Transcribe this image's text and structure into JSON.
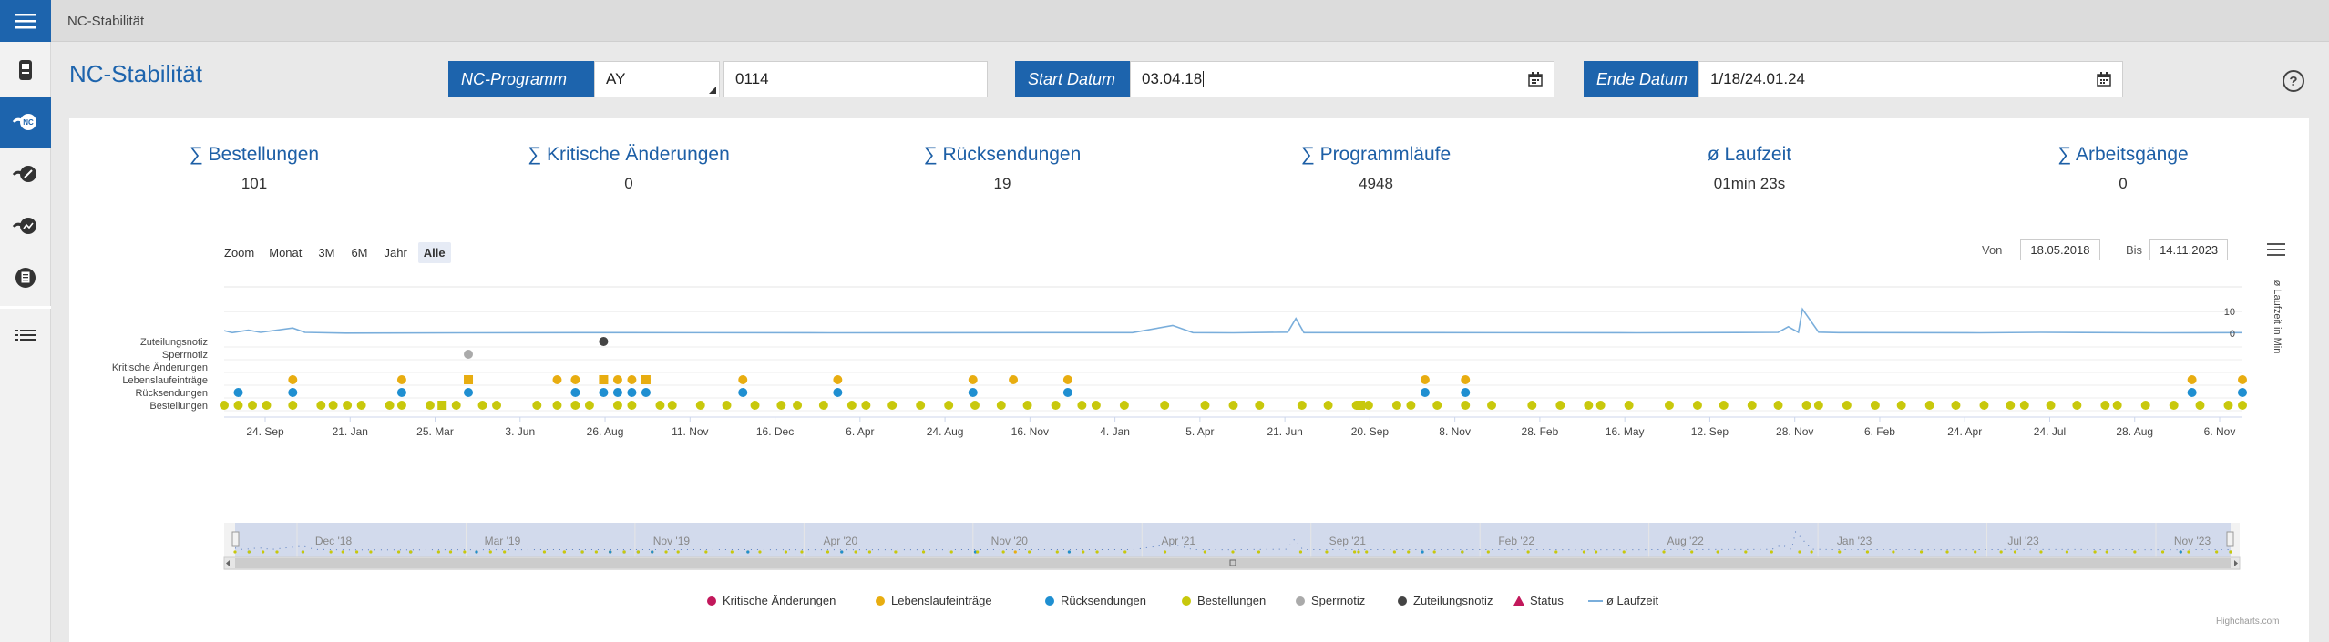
{
  "breadcrumb": "NC-Stabilität",
  "page_title": "NC-Stabilität",
  "filters": {
    "program_label": "NC-Programm",
    "program_select": "AY",
    "program_value": "0114",
    "start_label": "Start Datum",
    "start_value": "03.04.18",
    "end_label": "Ende Datum",
    "end_value": "1/18/24.01.24"
  },
  "help_icon": "?",
  "stats": [
    {
      "label": "∑ Bestellungen",
      "value": "101"
    },
    {
      "label": "∑ Kritische Änderungen",
      "value": "0"
    },
    {
      "label": "∑ Rücksendungen",
      "value": "19"
    },
    {
      "label": "∑ Programmläufe",
      "value": "4948"
    },
    {
      "label": "ø Laufzeit",
      "value": "01min 23s"
    },
    {
      "label": "∑ Arbeitsgänge",
      "value": "0"
    }
  ],
  "chart_controls": {
    "zoom_label": "Zoom",
    "zoom_buttons": [
      "Monat",
      "3M",
      "6M",
      "Jahr",
      "Alle"
    ],
    "zoom_selected": "Alle",
    "from_label": "Von",
    "from_value": "18.05.2018",
    "to_label": "Bis",
    "to_value": "14.11.2023",
    "menu_icon": "hamburger-menu-icon"
  },
  "colors": {
    "primary": "#1d64ad",
    "kritische": "#c2185b",
    "lebenslauf": "#e8ad10",
    "ruecksendung": "#1f8fd1",
    "bestellung": "#c8c80c",
    "sperrnotiz": "#aaaaaa",
    "zuteilungsnotiz": "#444444",
    "laufzeit": "#7aaedb"
  },
  "chart_data": {
    "type": "scatter",
    "categories": [
      "Zuteilungsnotiz",
      "Sperrnotiz",
      "Kritische Änderungen",
      "Lebenslaufeinträge",
      "Rücksendungen",
      "Bestellungen"
    ],
    "x_tick_labels": [
      "24. Sep",
      "21. Jan",
      "25. Mar",
      "3. Jun",
      "26. Aug",
      "11. Nov",
      "16. Dec",
      "6. Apr",
      "24. Aug",
      "16. Nov",
      "4. Jan",
      "5. Apr",
      "21. Jun",
      "20. Sep",
      "8. Nov",
      "28. Feb",
      "16. May",
      "12. Sep",
      "28. Nov",
      "6. Feb",
      "24. Apr",
      "24. Jul",
      "28. Aug",
      "6. Nov"
    ],
    "y_right_label": "ø Laufzeit in Min",
    "y_right_ticks": [
      "10",
      "0"
    ],
    "series": [
      {
        "name": "Zuteilungsnotiz",
        "marker": "circle",
        "x": [
          0.188
        ]
      },
      {
        "name": "Sperrnotiz",
        "marker": "circle",
        "x": [
          0.121
        ]
      },
      {
        "name": "Kritische Änderungen",
        "marker": "circle",
        "x": []
      },
      {
        "name": "Lebenslaufeinträge",
        "marker": "circle",
        "x": [
          0.034,
          0.088,
          0.165,
          0.174,
          0.188,
          0.195,
          0.202,
          0.209,
          0.257,
          0.304,
          0.371,
          0.391,
          0.418,
          0.595,
          0.615,
          0.975,
          1.0
        ]
      },
      {
        "name": "Lebenslaufeinträge (Status)",
        "marker": "square",
        "x": [
          0.121,
          0.188,
          0.209
        ]
      },
      {
        "name": "Rücksendungen",
        "marker": "circle",
        "x": [
          0.007,
          0.034,
          0.088,
          0.121,
          0.174,
          0.188,
          0.195,
          0.202,
          0.209,
          0.257,
          0.304,
          0.371,
          0.418,
          0.595,
          0.615,
          0.975,
          1.0
        ]
      },
      {
        "name": "Bestellungen",
        "marker": "circle",
        "x": [
          0.0,
          0.007,
          0.014,
          0.021,
          0.034,
          0.048,
          0.054,
          0.061,
          0.068,
          0.082,
          0.088,
          0.102,
          0.115,
          0.128,
          0.135,
          0.155,
          0.165,
          0.174,
          0.181,
          0.195,
          0.202,
          0.216,
          0.222,
          0.236,
          0.249,
          0.263,
          0.276,
          0.284,
          0.297,
          0.311,
          0.318,
          0.331,
          0.345,
          0.359,
          0.372,
          0.385,
          0.398,
          0.412,
          0.425,
          0.432,
          0.446,
          0.466,
          0.486,
          0.5,
          0.513,
          0.534,
          0.547,
          0.561,
          0.567,
          0.581,
          0.588,
          0.601,
          0.615,
          0.628,
          0.648,
          0.662,
          0.676,
          0.682,
          0.696,
          0.716,
          0.73,
          0.743,
          0.757,
          0.77,
          0.784,
          0.79,
          0.804,
          0.818,
          0.831,
          0.845,
          0.858,
          0.872,
          0.885,
          0.892,
          0.905,
          0.918,
          0.932,
          0.938,
          0.952,
          0.966,
          0.979,
          0.993,
          1.0
        ]
      },
      {
        "name": "Bestellungen (Status)",
        "marker": "square",
        "x": [
          0.108,
          0.563
        ]
      }
    ],
    "laufzeit_line": {
      "name": "ø Laufzeit",
      "points": [
        [
          0.0,
          1.2
        ],
        [
          0.004,
          0.3
        ],
        [
          0.012,
          1.4
        ],
        [
          0.018,
          0.4
        ],
        [
          0.034,
          2.4
        ],
        [
          0.04,
          0.4
        ],
        [
          0.06,
          0.1
        ],
        [
          0.12,
          0.2
        ],
        [
          0.2,
          0.3
        ],
        [
          0.3,
          0.2
        ],
        [
          0.45,
          0.3
        ],
        [
          0.47,
          3.6
        ],
        [
          0.48,
          0.3
        ],
        [
          0.5,
          0.2
        ],
        [
          0.527,
          0.5
        ],
        [
          0.531,
          6.8
        ],
        [
          0.535,
          0.3
        ],
        [
          0.6,
          0.3
        ],
        [
          0.7,
          0.2
        ],
        [
          0.77,
          0.4
        ],
        [
          0.775,
          3.0
        ],
        [
          0.78,
          0.4
        ],
        [
          0.782,
          11.1
        ],
        [
          0.79,
          0.5
        ],
        [
          0.8,
          0.3
        ],
        [
          0.87,
          0.2
        ],
        [
          0.9,
          0.4
        ],
        [
          0.96,
          0.2
        ],
        [
          1.0,
          0.3
        ]
      ]
    }
  },
  "navigator": {
    "labels": [
      "Dec '18",
      "Mar '19",
      "Nov '19",
      "Apr '20",
      "Nov '20",
      "Apr '21",
      "Sep '21",
      "Feb '22",
      "Aug '22",
      "Jan '23",
      "Jul '23",
      "Nov '23"
    ]
  },
  "legend": [
    {
      "name": "Kritische Änderungen",
      "marker": "circle",
      "color": "#c2185b"
    },
    {
      "name": "Lebenslaufeinträge",
      "marker": "circle",
      "color": "#e8ad10"
    },
    {
      "name": "Rücksendungen",
      "marker": "circle",
      "color": "#1f8fd1"
    },
    {
      "name": "Bestellungen",
      "marker": "circle",
      "color": "#c8c80c"
    },
    {
      "name": "Sperrnotiz",
      "marker": "circle",
      "color": "#aaaaaa"
    },
    {
      "name": "Zuteilungsnotiz",
      "marker": "circle",
      "color": "#444444"
    },
    {
      "name": "Status",
      "marker": "triangle",
      "color": "#c2185b"
    },
    {
      "name": "ø Laufzeit",
      "marker": "line",
      "color": "#7aaedb"
    }
  ],
  "credits": "Highcharts.com"
}
